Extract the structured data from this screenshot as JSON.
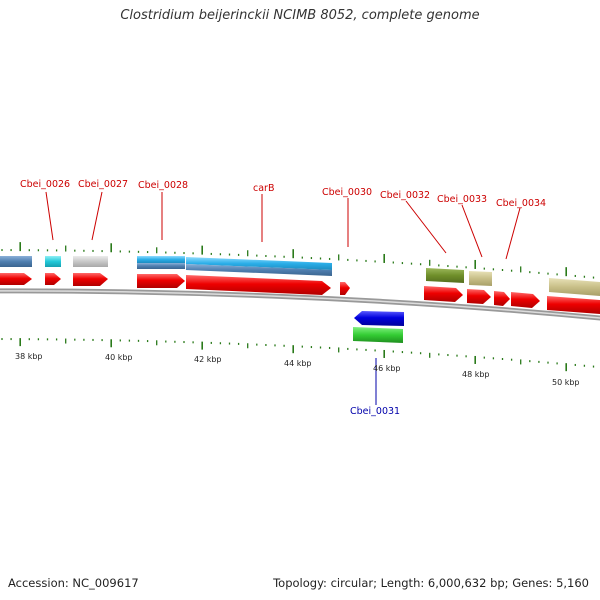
{
  "title": "Clostridium beijerinckii NCIMB 8052, complete genome",
  "colors": {
    "label_forward": "#cc0000",
    "label_reverse": "#0000aa",
    "tick": "#2a7a1a",
    "backbone": "#777777",
    "cds_forward": "#ee0000",
    "cds_reverse": "#0000dd"
  },
  "tick_labels": [
    "38 kbp",
    "40 kbp",
    "42 kbp",
    "44 kbp",
    "46 kbp",
    "48 kbp",
    "50 kbp"
  ],
  "gene_labels": [
    {
      "text": "Cbei_0026",
      "strand": "forward"
    },
    {
      "text": "Cbei_0027",
      "strand": "forward"
    },
    {
      "text": "Cbei_0028",
      "strand": "forward"
    },
    {
      "text": "carB",
      "strand": "forward"
    },
    {
      "text": "Cbei_0030",
      "strand": "forward"
    },
    {
      "text": "Cbei_0032",
      "strand": "forward"
    },
    {
      "text": "Cbei_0033",
      "strand": "forward"
    },
    {
      "text": "Cbei_0034",
      "strand": "forward"
    },
    {
      "text": "Cbei_0031",
      "strand": "reverse"
    }
  ],
  "footer": {
    "accession": "Accession: NC_009617",
    "summary": "Topology: circular; Length: 6,000,632 bp; Genes: 5,160"
  }
}
